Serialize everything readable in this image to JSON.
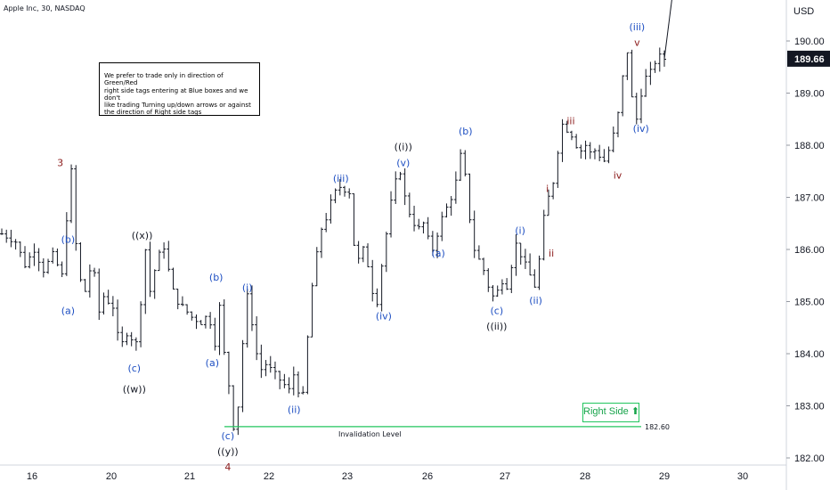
{
  "header": {
    "title": "Apple Inc, 30, NASDAQ"
  },
  "axis": {
    "currency": "USD",
    "last_price": "189.66"
  },
  "note": {
    "lines": [
      "We prefer to trade only in direction of Green/Red",
      "right side tags entering at Blue boxes and we don't",
      "like trading Turning up/down arrows or against",
      "the direction of Right side tags"
    ]
  },
  "right_side": {
    "label": "Right Side",
    "arrow": "⬆"
  },
  "colors": {
    "blue": "#1e4fc2",
    "black": "#131722",
    "red": "#8b1a1a",
    "green": "#22c55e",
    "bars": "#131722"
  },
  "chart_data": {
    "type": "ohlc-bar",
    "symbol": "Apple Inc",
    "interval": "30",
    "exchange": "NASDAQ",
    "ylim": [
      181.85,
      191.7
    ],
    "y_ticks": [
      182,
      183,
      184,
      185,
      186,
      187,
      188,
      189,
      190
    ],
    "y_tick_labels": [
      "182.00",
      "183.00",
      "184.00",
      "185.00",
      "186.00",
      "187.00",
      "188.00",
      "189.00",
      "190.00"
    ],
    "x_tick_labels": [
      "16",
      "20",
      "21",
      "22",
      "23",
      "26",
      "27",
      "28",
      "29",
      "30"
    ],
    "invalidation": {
      "label": "Invalidation Level",
      "value": 182.6,
      "value_label": "182.60"
    },
    "price_path": [
      [
        0,
        186.3
      ],
      [
        3,
        186.15
      ],
      [
        5,
        185.7
      ],
      [
        7,
        186.0
      ],
      [
        9,
        185.6
      ],
      [
        11,
        185.9
      ],
      [
        13,
        185.5
      ],
      [
        14,
        186.6
      ],
      [
        15,
        187.5
      ],
      [
        16,
        186.1
      ],
      [
        17,
        185.4
      ],
      [
        18,
        185.2
      ],
      [
        19,
        185.6
      ],
      [
        20,
        185.5
      ],
      [
        21,
        184.8
      ],
      [
        22,
        185.1
      ],
      [
        23,
        185.0
      ],
      [
        24,
        184.9
      ],
      [
        25,
        184.35
      ],
      [
        26,
        184.2
      ],
      [
        27,
        184.4
      ],
      [
        28,
        184.3
      ],
      [
        29,
        184.2
      ],
      [
        30,
        185.0
      ],
      [
        31,
        186.0
      ],
      [
        32,
        185.2
      ],
      [
        33,
        185.6
      ],
      [
        34,
        185.9
      ],
      [
        35,
        186.05
      ],
      [
        36,
        185.6
      ],
      [
        37,
        185.2
      ],
      [
        38,
        185.0
      ],
      [
        39,
        184.9
      ],
      [
        40,
        184.8
      ],
      [
        41,
        184.7
      ],
      [
        42,
        184.65
      ],
      [
        43,
        184.6
      ],
      [
        44,
        184.7
      ],
      [
        45,
        184.6
      ],
      [
        46,
        184.2
      ],
      [
        47,
        184.9
      ],
      [
        48,
        184.0
      ],
      [
        49,
        183.4
      ],
      [
        50,
        182.6
      ],
      [
        51,
        183.0
      ],
      [
        52,
        184.2
      ],
      [
        53,
        185.1
      ],
      [
        54,
        184.6
      ],
      [
        55,
        184.0
      ],
      [
        56,
        183.7
      ],
      [
        57,
        183.8
      ],
      [
        58,
        183.7
      ],
      [
        59,
        183.6
      ],
      [
        60,
        183.5
      ],
      [
        61,
        183.4
      ],
      [
        62,
        183.3
      ],
      [
        63,
        183.6
      ],
      [
        64,
        183.3
      ],
      [
        65,
        183.2
      ],
      [
        66,
        184.3
      ],
      [
        67,
        185.3
      ],
      [
        68,
        185.9
      ],
      [
        69,
        186.4
      ],
      [
        70,
        186.6
      ],
      [
        71,
        186.9
      ],
      [
        72,
        187.1
      ],
      [
        73,
        187.2
      ],
      [
        74,
        187.15
      ],
      [
        75,
        187.1
      ],
      [
        76,
        186.1
      ],
      [
        77,
        185.8
      ],
      [
        78,
        186.0
      ],
      [
        79,
        185.7
      ],
      [
        80,
        185.2
      ],
      [
        81,
        185.0
      ],
      [
        82,
        185.7
      ],
      [
        83,
        186.3
      ],
      [
        84,
        186.9
      ],
      [
        85,
        187.3
      ],
      [
        86,
        187.5
      ],
      [
        87,
        187.0
      ],
      [
        88,
        186.7
      ],
      [
        89,
        186.5
      ],
      [
        90,
        186.4
      ],
      [
        91,
        186.5
      ],
      [
        92,
        186.2
      ],
      [
        93,
        186.0
      ],
      [
        94,
        186.3
      ],
      [
        95,
        186.6
      ],
      [
        96,
        186.8
      ],
      [
        97,
        187.0
      ],
      [
        98,
        187.3
      ],
      [
        99,
        187.8
      ],
      [
        100,
        187.4
      ],
      [
        101,
        186.6
      ],
      [
        102,
        186.0
      ],
      [
        103,
        185.8
      ],
      [
        104,
        185.6
      ],
      [
        105,
        185.3
      ],
      [
        106,
        185.1
      ],
      [
        107,
        185.2
      ],
      [
        108,
        185.4
      ],
      [
        109,
        185.3
      ],
      [
        110,
        185.7
      ],
      [
        111,
        186.1
      ],
      [
        112,
        185.9
      ],
      [
        113,
        185.7
      ],
      [
        114,
        185.5
      ],
      [
        115,
        185.3
      ],
      [
        116,
        185.8
      ],
      [
        117,
        186.6
      ],
      [
        118,
        187.0
      ],
      [
        119,
        187.3
      ],
      [
        120,
        187.9
      ],
      [
        121,
        188.4
      ],
      [
        122,
        188.3
      ],
      [
        123,
        188.2
      ],
      [
        124,
        188.0
      ],
      [
        125,
        187.9
      ],
      [
        126,
        188.0
      ],
      [
        127,
        187.85
      ],
      [
        128,
        187.9
      ],
      [
        129,
        187.8
      ],
      [
        130,
        187.7
      ],
      [
        131,
        187.9
      ],
      [
        132,
        188.2
      ],
      [
        133,
        188.6
      ],
      [
        134,
        189.3
      ],
      [
        135,
        189.8
      ],
      [
        136,
        188.9
      ],
      [
        137,
        188.5
      ],
      [
        138,
        189.0
      ],
      [
        139,
        189.3
      ],
      [
        140,
        189.4
      ],
      [
        141,
        189.6
      ],
      [
        142,
        189.7
      ],
      [
        143,
        189.66
      ]
    ],
    "wave_labels": [
      {
        "text": "3",
        "color": "red",
        "i": 15,
        "v": 187.5,
        "pos": "above"
      },
      {
        "text": "(b)",
        "color": "blue",
        "i": 17,
        "v": 186.2,
        "pos": "right"
      },
      {
        "text": "(a)",
        "color": "blue",
        "i": 17,
        "v": 185.0,
        "pos": "below"
      },
      {
        "text": "((x))",
        "color": "black",
        "i": 36,
        "v": 186.1,
        "pos": "above"
      },
      {
        "text": "(c)",
        "color": "blue",
        "i": 34,
        "v": 183.9,
        "pos": "below"
      },
      {
        "text": "((w))",
        "color": "black",
        "i": 34,
        "v": 183.5,
        "pos": "below"
      },
      {
        "text": "(b)",
        "color": "blue",
        "i": 55,
        "v": 185.3,
        "pos": "above"
      },
      {
        "text": "(i)",
        "color": "blue",
        "i": 63,
        "v": 185.1,
        "pos": "above"
      },
      {
        "text": "(a)",
        "color": "blue",
        "i": 54,
        "v": 184.0,
        "pos": "below"
      },
      {
        "text": "(c)",
        "color": "blue",
        "i": 58,
        "v": 182.6,
        "pos": "below"
      },
      {
        "text": "((y))",
        "color": "black",
        "i": 58,
        "v": 182.3,
        "pos": "below"
      },
      {
        "text": "4",
        "color": "red",
        "i": 58,
        "v": 182.0,
        "pos": "below"
      },
      {
        "text": "(ii)",
        "color": "blue",
        "i": 75,
        "v": 183.1,
        "pos": "below"
      },
      {
        "text": "(iii)",
        "color": "blue",
        "i": 87,
        "v": 187.2,
        "pos": "above"
      },
      {
        "text": "(iv)",
        "color": "blue",
        "i": 98,
        "v": 184.9,
        "pos": "below"
      },
      {
        "text": "((i))",
        "color": "black",
        "i": 103,
        "v": 187.8,
        "pos": "above"
      },
      {
        "text": "(v)",
        "color": "blue",
        "i": 103,
        "v": 187.5,
        "pos": "above"
      },
      {
        "text": "(a)",
        "color": "blue",
        "i": 112,
        "v": 186.1,
        "pos": "below"
      },
      {
        "text": "(b)",
        "color": "blue",
        "i": 119,
        "v": 188.1,
        "pos": "above"
      },
      {
        "text": "(c)",
        "color": "blue",
        "i": 127,
        "v": 185.0,
        "pos": "below"
      },
      {
        "text": "((ii))",
        "color": "black",
        "i": 127,
        "v": 184.7,
        "pos": "below"
      },
      {
        "text": "(i)",
        "color": "blue",
        "i": 133,
        "v": 186.2,
        "pos": "above"
      },
      {
        "text": "(ii)",
        "color": "blue",
        "i": 137,
        "v": 185.2,
        "pos": "below"
      },
      {
        "text": "i",
        "color": "red",
        "i": 140,
        "v": 187.0,
        "pos": "above"
      },
      {
        "text": "ii",
        "color": "red",
        "i": 141,
        "v": 186.1,
        "pos": "below"
      },
      {
        "text": "iii",
        "color": "red",
        "i": 146,
        "v": 188.3,
        "pos": "above"
      },
      {
        "text": "iv",
        "color": "red",
        "i": 158,
        "v": 187.6,
        "pos": "below"
      },
      {
        "text": "(iv)",
        "color": "blue",
        "i": 164,
        "v": 188.5,
        "pos": "below"
      },
      {
        "text": "(iii)",
        "color": "blue",
        "i": 163,
        "v": 190.1,
        "pos": "above"
      },
      {
        "text": "v",
        "color": "red",
        "i": 163,
        "v": 189.8,
        "pos": "above"
      }
    ],
    "projection": {
      "from": 189.66,
      "to": 191.55
    }
  }
}
